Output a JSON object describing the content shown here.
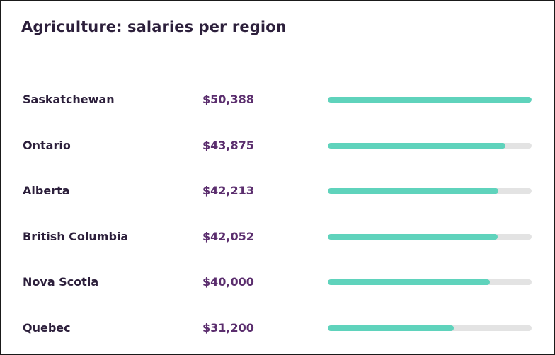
{
  "card": {
    "title": "Agriculture: salaries per region"
  },
  "colors": {
    "bar_fill": "#5fd3bc",
    "bar_track": "#e3e3e3",
    "salary_text": "#5b2e6e",
    "region_text": "#2c1f3b"
  },
  "rows": [
    {
      "region": "Saskatchewan",
      "salary": "$50,388",
      "bar_fraction": 1.0
    },
    {
      "region": "Ontario",
      "salary": "$43,875",
      "bar_fraction": 0.871
    },
    {
      "region": "Alberta",
      "salary": "$42,213",
      "bar_fraction": 0.838
    },
    {
      "region": "British Columbia",
      "salary": "$42,052",
      "bar_fraction": 0.835
    },
    {
      "region": "Nova Scotia",
      "salary": "$40,000",
      "bar_fraction": 0.794
    },
    {
      "region": "Quebec",
      "salary": "$31,200",
      "bar_fraction": 0.619
    }
  ]
}
